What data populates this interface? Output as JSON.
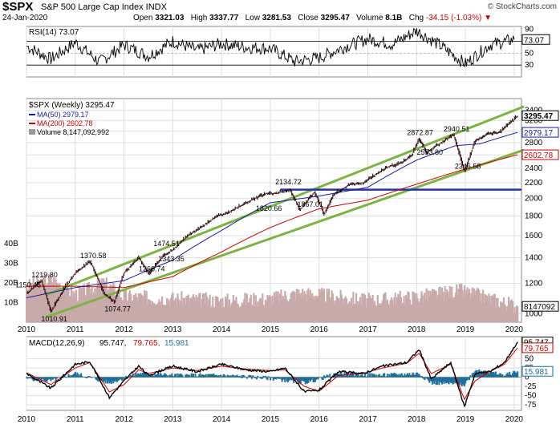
{
  "header": {
    "symbol": "$SPX",
    "name": "S&P 500 Large Cap Index INDX",
    "date": "24-Jan-2020",
    "open_label": "Open",
    "open": "3321.03",
    "high_label": "High",
    "high": "3337.77",
    "low_label": "Low",
    "low": "3281.53",
    "close_label": "Close",
    "close": "3295.47",
    "volume_label": "Volume",
    "volume": "8.1B",
    "chg_label": "Chg",
    "chg": "-34.15 (-1.03%)",
    "credit": "© StockCharts.com"
  },
  "colors": {
    "price": "#000000",
    "ma50": "#1a1aa0",
    "ma200": "#cc0000",
    "channel": "#7cb342",
    "support": "#2233aa",
    "volume": "#c8aaaa",
    "macd_hist": "#1f6e9c",
    "grid": "#dddddd"
  },
  "chart_data": [
    {
      "type": "line",
      "title": "RSI(14) 73.07",
      "legend": [
        "RSI(14) 73.07"
      ],
      "ylim": [
        10,
        95
      ],
      "yticks": [
        "90",
        "70",
        "50",
        "30"
      ],
      "last_label": "73.07",
      "x": [
        "2010",
        "2010.5",
        "2011",
        "2011.5",
        "2012",
        "2012.5",
        "2013",
        "2013.5",
        "2014",
        "2014.5",
        "2015",
        "2015.5",
        "2016",
        "2016.5",
        "2017",
        "2017.5",
        "2018",
        "2018.5",
        "2019",
        "2019.5",
        "2020"
      ],
      "values": [
        62,
        40,
        68,
        35,
        64,
        45,
        70,
        55,
        66,
        60,
        58,
        36,
        42,
        60,
        74,
        65,
        88,
        62,
        32,
        64,
        73.07
      ]
    },
    {
      "type": "line",
      "title": "$SPX (Weekly) 3295.47",
      "legend": [
        "$SPX (Weekly) 3295.47",
        "MA(50) 2979.17",
        "MA(200) 2602.78",
        "Volume 8,147,092,992"
      ],
      "ylim": [
        950,
        3650
      ],
      "yticks": [
        "3400",
        "3200",
        "3000",
        "2800",
        "2600",
        "2400",
        "2200",
        "2000",
        "1800",
        "1600",
        "1400",
        "1200",
        "1000"
      ],
      "xticks": [
        "2010",
        "2011",
        "2012",
        "2013",
        "2014",
        "2015",
        "2016",
        "2017",
        "2018",
        "2019",
        "2020"
      ],
      "vol_ticks": [
        "40B",
        "30B",
        "20B",
        "10B"
      ],
      "series": [
        {
          "name": "$SPX (Weekly)",
          "x": [
            2010.0,
            2010.3,
            2010.5,
            2010.8,
            2011.0,
            2011.3,
            2011.6,
            2011.8,
            2012.0,
            2012.3,
            2012.5,
            2012.8,
            2013.0,
            2013.3,
            2013.6,
            2013.9,
            2014.1,
            2014.4,
            2014.6,
            2014.9,
            2015.1,
            2015.4,
            2015.6,
            2015.9,
            2016.1,
            2016.3,
            2016.6,
            2016.9,
            2017.1,
            2017.4,
            2017.7,
            2017.9,
            2018.05,
            2018.2,
            2018.5,
            2018.75,
            2018.98,
            2019.2,
            2019.45,
            2019.7,
            2019.9,
            2020.07
          ],
          "values": [
            1130,
            1219.8,
            1010.91,
            1180,
            1280,
            1370.58,
            1120,
            1074.77,
            1280,
            1400,
            1266.74,
            1420,
            1470,
            1600,
            1690,
            1800,
            1830,
            1920,
            1980,
            2060,
            2060,
            2110,
            1867.01,
            2080,
            1820.66,
            2050,
            2170,
            2200,
            2290,
            2420,
            2480,
            2600,
            2872.87,
            2640,
            2800,
            2940.51,
            2346.58,
            2830,
            2950,
            2980,
            3150,
            3295.47
          ]
        },
        {
          "name": "MA(50)",
          "x": [
            2010.0,
            2011.0,
            2012.0,
            2013.0,
            2014.0,
            2015.0,
            2016.0,
            2017.0,
            2018.0,
            2018.8,
            2019.3,
            2020.07
          ],
          "values": [
            1100,
            1170,
            1220,
            1380,
            1650,
            1950,
            2030,
            2140,
            2520,
            2750,
            2780,
            2979.17
          ]
        },
        {
          "name": "MA(200)",
          "x": [
            2010.0,
            2011.0,
            2012.0,
            2013.0,
            2014.0,
            2015.0,
            2016.0,
            2017.0,
            2018.0,
            2019.0,
            2020.07
          ],
          "values": [
            1180,
            1180,
            1170,
            1250,
            1450,
            1680,
            1880,
            1980,
            2180,
            2390,
            2602.78
          ]
        },
        {
          "name": "Volume",
          "x": [
            2010.0,
            2010.5,
            2011.0,
            2011.6,
            2012.0,
            2013.0,
            2014.0,
            2015.0,
            2015.6,
            2016.0,
            2017.0,
            2018.0,
            2018.9,
            2019.5,
            2020.07
          ],
          "values": [
            18,
            22,
            14,
            20,
            13,
            12,
            11,
            12,
            15,
            14,
            11,
            13,
            16,
            12,
            8.1
          ]
        }
      ],
      "annotations": [
        {
          "text": "1219.80",
          "x": 2010.3,
          "y": 1219.8
        },
        {
          "text": "1150.45",
          "x": 2009.97,
          "y": 1150.45
        },
        {
          "text": "1010.91",
          "x": 2010.5,
          "y": 1010.91
        },
        {
          "text": "1370.58",
          "x": 2011.3,
          "y": 1370.58
        },
        {
          "text": "1074.77",
          "x": 2011.8,
          "y": 1074.77
        },
        {
          "text": "1266.74",
          "x": 2012.5,
          "y": 1266.74
        },
        {
          "text": "1343.35",
          "x": 2012.9,
          "y": 1343.35
        },
        {
          "text": "1474.51",
          "x": 2012.8,
          "y": 1474.51
        },
        {
          "text": "1820.66",
          "x": 2014.9,
          "y": 1820.66
        },
        {
          "text": "2134.72",
          "x": 2015.3,
          "y": 2134.72
        },
        {
          "text": "1867.01",
          "x": 2015.75,
          "y": 1867.01
        },
        {
          "text": "2872.87",
          "x": 2018.0,
          "y": 2872.87
        },
        {
          "text": "2553.80",
          "x": 2018.2,
          "y": 2553.8
        },
        {
          "text": "2940.51",
          "x": 2018.75,
          "y": 2940.51
        },
        {
          "text": "2346.58",
          "x": 2018.98,
          "y": 2346.58
        }
      ],
      "trendlines": [
        {
          "name": "upper channel",
          "x": [
            2010.4,
            2020.2
          ],
          "values": [
            1120,
            3480
          ]
        },
        {
          "name": "lower channel",
          "x": [
            2010.4,
            2020.2
          ],
          "values": [
            980,
            2680
          ]
        },
        {
          "name": "support",
          "x": [
            2015.2,
            2020.2
          ],
          "values": [
            2110,
            2110
          ]
        }
      ],
      "price_labels": [
        "3295.47",
        "2979.17",
        "2602.78"
      ],
      "volume_label": "8147092"
    },
    {
      "type": "line",
      "title": "MACD(12,26,9) 95.747, 79.765, 15.981",
      "legend": [
        "MACD(12,26,9)",
        "95.747,",
        "79.765,",
        "15.981"
      ],
      "ylim": [
        -90,
        110
      ],
      "yticks": [
        "50",
        "25",
        "0",
        "-25",
        "-50",
        "-75"
      ],
      "xticks": [
        "2010",
        "2011",
        "2012",
        "2013",
        "2014",
        "2015",
        "2016",
        "2017",
        "2018",
        "2019",
        "2020"
      ],
      "series": [
        {
          "name": "MACD",
          "x": [
            2010.0,
            2010.5,
            2011.0,
            2011.3,
            2011.7,
            2012.0,
            2012.3,
            2012.5,
            2013.0,
            2013.5,
            2014.0,
            2014.5,
            2015.0,
            2015.3,
            2015.7,
            2016.0,
            2016.4,
            2016.9,
            2017.3,
            2017.8,
            2018.05,
            2018.3,
            2018.7,
            2018.98,
            2019.2,
            2019.5,
            2019.8,
            2020.07
          ],
          "values": [
            10,
            -30,
            35,
            42,
            -55,
            -10,
            30,
            5,
            30,
            15,
            35,
            20,
            15,
            25,
            -40,
            -35,
            15,
            10,
            30,
            40,
            75,
            -5,
            40,
            -80,
            10,
            15,
            40,
            95.747
          ]
        },
        {
          "name": "Signal",
          "x": [
            2010.0,
            2010.5,
            2011.0,
            2011.3,
            2011.7,
            2012.0,
            2012.3,
            2012.5,
            2013.0,
            2013.5,
            2014.0,
            2014.5,
            2015.0,
            2015.3,
            2015.7,
            2016.0,
            2016.4,
            2016.9,
            2017.3,
            2017.8,
            2018.05,
            2018.3,
            2018.7,
            2018.98,
            2019.2,
            2019.5,
            2019.8,
            2020.07
          ],
          "values": [
            12,
            -20,
            25,
            40,
            -40,
            -20,
            20,
            10,
            25,
            18,
            30,
            22,
            18,
            20,
            -25,
            -38,
            5,
            10,
            25,
            38,
            65,
            10,
            35,
            -60,
            -10,
            15,
            35,
            79.765
          ]
        },
        {
          "name": "Histogram",
          "x": [
            2010.0,
            2010.5,
            2011.0,
            2011.7,
            2012.3,
            2013.0,
            2014.0,
            2015.0,
            2015.7,
            2016.4,
            2017.3,
            2018.05,
            2018.3,
            2018.98,
            2019.2,
            2019.8,
            2020.07
          ],
          "values": [
            -3,
            -10,
            10,
            -15,
            10,
            5,
            5,
            -3,
            -15,
            10,
            5,
            10,
            -15,
            -20,
            20,
            5,
            15.981
          ]
        }
      ],
      "last_labels": [
        "95.747",
        "79.765",
        "15.981"
      ]
    }
  ]
}
